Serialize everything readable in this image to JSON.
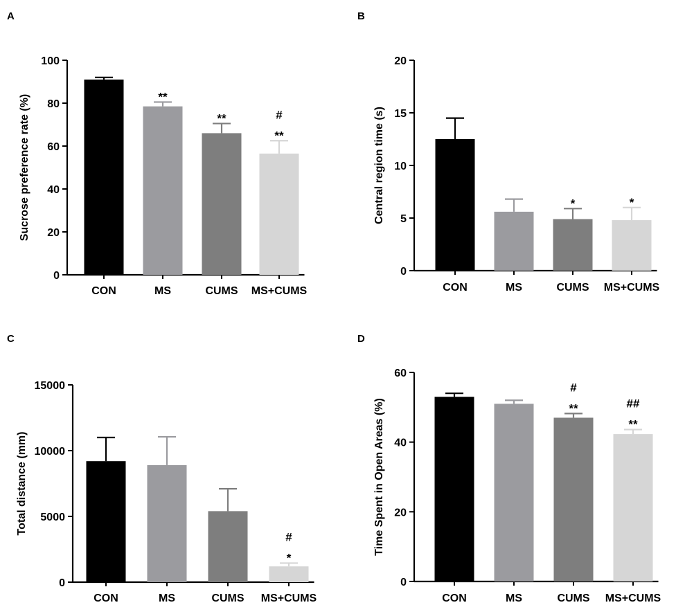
{
  "chart_data": [
    {
      "panel": "A",
      "type": "bar",
      "ylabel": "Sucrose preference rate (%)",
      "categories": [
        "CON",
        "MS",
        "CUMS",
        "MS+CUMS"
      ],
      "values": [
        91,
        78.5,
        66,
        56.5
      ],
      "errors": [
        1,
        2,
        4.5,
        6
      ],
      "ylim": [
        0,
        100
      ],
      "yticks": [
        "0",
        "20",
        "40",
        "60",
        "80",
        "100"
      ],
      "annotations": [
        [],
        [
          "**"
        ],
        [
          "**"
        ],
        [
          "#",
          "**"
        ]
      ]
    },
    {
      "panel": "B",
      "type": "bar",
      "ylabel": "Central region time (s)",
      "categories": [
        "CON",
        "MS",
        "CUMS",
        "MS+CUMS"
      ],
      "values": [
        12.5,
        5.6,
        4.9,
        4.8
      ],
      "errors": [
        2,
        1.2,
        1,
        1.2
      ],
      "ylim": [
        0,
        20
      ],
      "yticks": [
        "0",
        "5",
        "10",
        "15",
        "20"
      ],
      "annotations": [
        [],
        [],
        [
          "*"
        ],
        [
          "*"
        ]
      ]
    },
    {
      "panel": "C",
      "type": "bar",
      "ylabel": "Total distance (mm)",
      "categories": [
        "CON",
        "MS",
        "CUMS",
        "MS+CUMS"
      ],
      "values": [
        9200,
        8900,
        5400,
        1200
      ],
      "errors": [
        1800,
        2150,
        1700,
        250
      ],
      "ylim": [
        0,
        15000
      ],
      "yticks": [
        "0",
        "5000",
        "10000",
        "15000"
      ],
      "annotations": [
        [],
        [],
        [],
        [
          "#",
          "*"
        ]
      ]
    },
    {
      "panel": "D",
      "type": "bar",
      "ylabel": "Time Spent in Open Areas (%)",
      "categories": [
        "CON",
        "MS",
        "CUMS",
        "MS+CUMS"
      ],
      "values": [
        53,
        51,
        47,
        42.3
      ],
      "errors": [
        1,
        1,
        1.2,
        1.3
      ],
      "ylim": [
        0,
        60
      ],
      "yticks": [
        "0",
        "20",
        "40",
        "60"
      ],
      "annotations": [
        [],
        [],
        [
          "#",
          "**"
        ],
        [
          "##",
          "**"
        ]
      ]
    }
  ],
  "colors": [
    "#000000",
    "#9b9b9f",
    "#7e7e7e",
    "#d6d6d6"
  ]
}
